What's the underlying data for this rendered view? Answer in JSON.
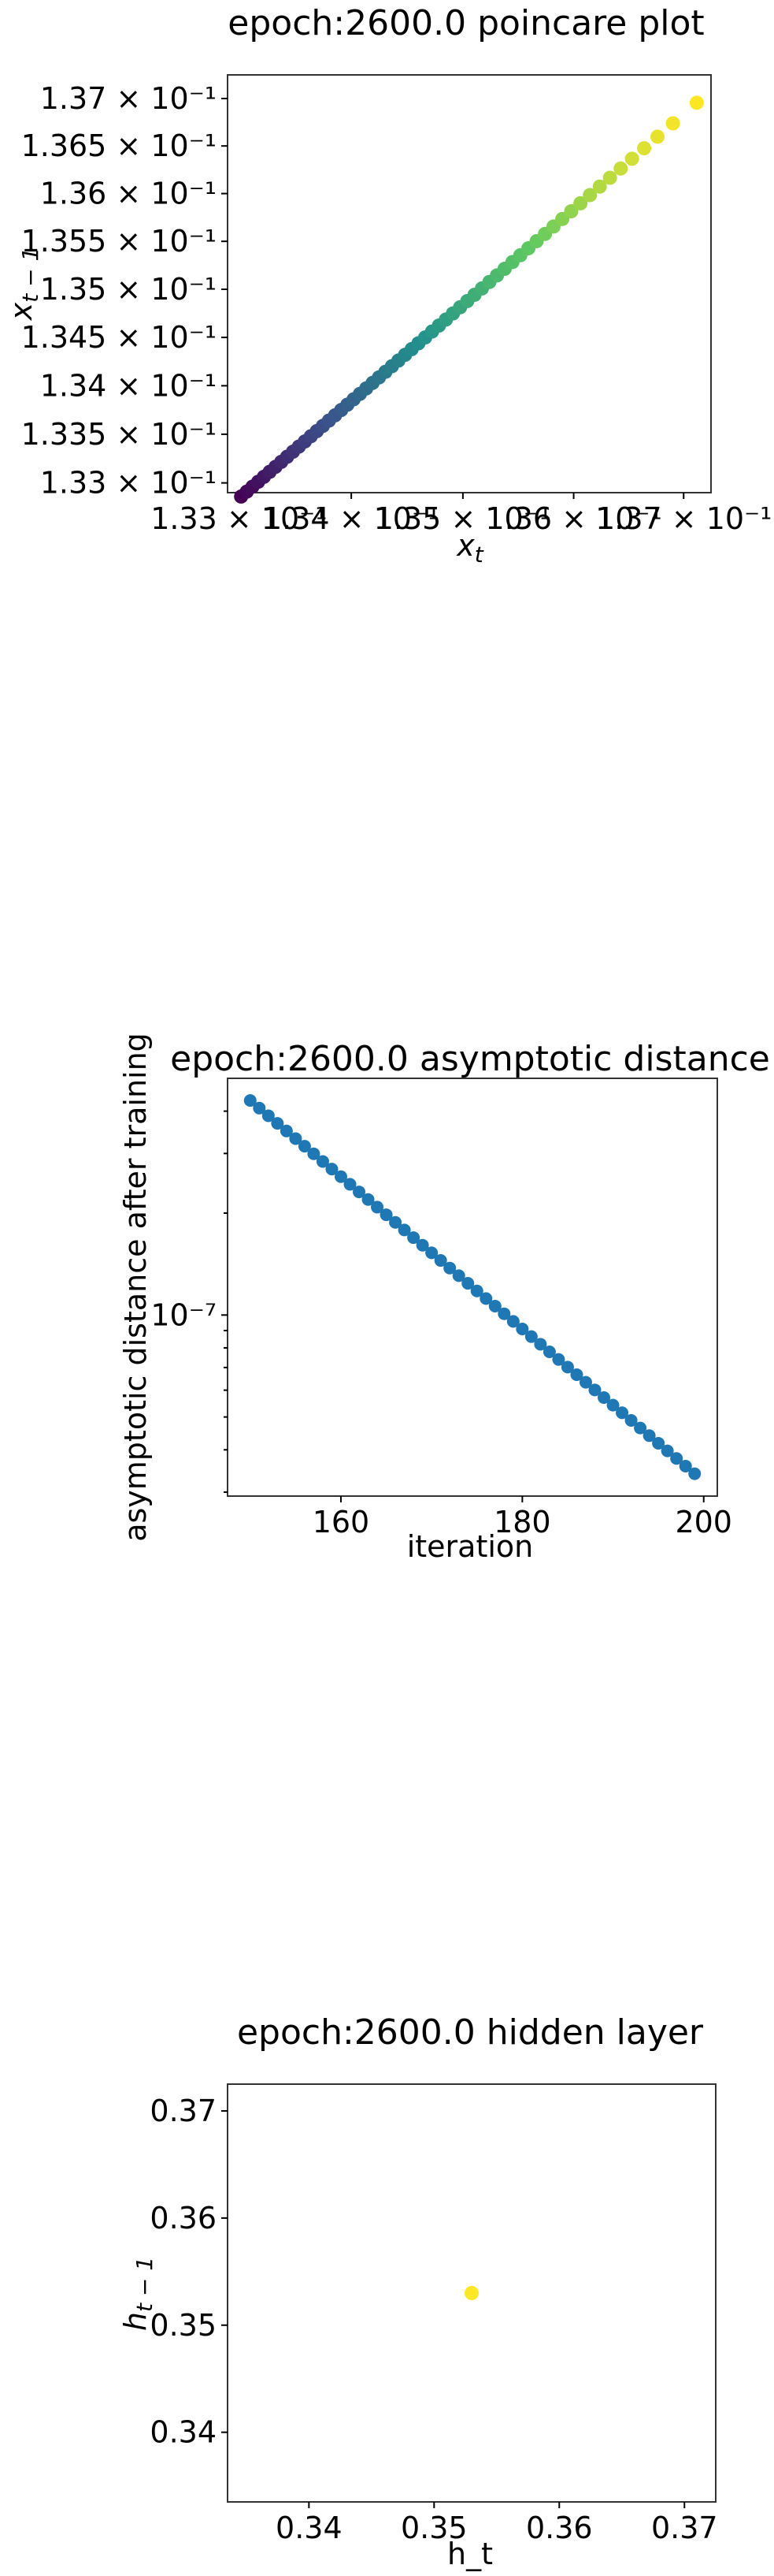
{
  "chart_data": [
    {
      "type": "scatter",
      "title": "epoch:2600.0 poincare plot",
      "xlabel": "x_t",
      "ylabel": "x_{t-1}",
      "x_scale": "log",
      "y_scale": "log",
      "xlim": [
        0.1329,
        0.13725
      ],
      "ylim": [
        0.1329,
        0.13725
      ],
      "x_ticks": [
        0.133,
        0.134,
        0.135,
        0.136,
        0.137
      ],
      "x_tick_labels": [
        "1.33 × 10⁻¹",
        "1.34 × 10⁻¹",
        "1.35 × 10⁻¹",
        "1.36 × 10⁻¹",
        "1.37 × 10⁻¹"
      ],
      "y_ticks": [
        0.133,
        0.1335,
        0.134,
        0.1345,
        0.135,
        0.1355,
        0.136,
        0.1365,
        0.137
      ],
      "y_tick_labels": [
        "1.33 × 10⁻¹",
        "1.335 × 10⁻¹",
        "1.34 × 10⁻¹",
        "1.345 × 10⁻¹",
        "1.35 × 10⁻¹",
        "1.355 × 10⁻¹",
        "1.36 × 10⁻¹",
        "1.365 × 10⁻¹",
        "1.37 × 10⁻¹"
      ],
      "colormap": "viridis",
      "point_count": 60,
      "x_first": 0.13712,
      "x_last": 0.13302,
      "lag_ratio": 0.9988
    },
    {
      "type": "scatter",
      "title": "epoch:2600.0 asymptotic distance",
      "xlabel": "iteration",
      "ylabel": "asymptotic distance after training",
      "y_scale": "log",
      "xlim": [
        147.5,
        201.5
      ],
      "ylim": [
        2.92e-08,
        5e-07
      ],
      "x_ticks": [
        160,
        180,
        200
      ],
      "x_tick_labels": [
        "160",
        "180",
        "200"
      ],
      "y_ticks": [
        1e-07
      ],
      "y_tick_labels": [
        "10⁻⁷"
      ],
      "point_color": "#1f77b4",
      "x_start": 150,
      "x_end": 199,
      "y_start": 4.3e-07,
      "y_end": 3.4e-08
    },
    {
      "type": "scatter",
      "title": "epoch:2600.0 hidden layer",
      "xlabel": "h_t",
      "ylabel": "h_{t-1}",
      "xlim": [
        0.3335,
        0.3725
      ],
      "ylim": [
        0.3335,
        0.3725
      ],
      "x_ticks": [
        0.34,
        0.35,
        0.36,
        0.37
      ],
      "x_tick_labels": [
        "0.34",
        "0.35",
        "0.36",
        "0.37"
      ],
      "y_ticks": [
        0.34,
        0.35,
        0.36,
        0.37
      ],
      "y_tick_labels": [
        "0.34",
        "0.35",
        "0.36",
        "0.37"
      ],
      "points": [
        {
          "x": 0.353,
          "y": 0.353
        }
      ],
      "point_color": "#fde725"
    }
  ]
}
